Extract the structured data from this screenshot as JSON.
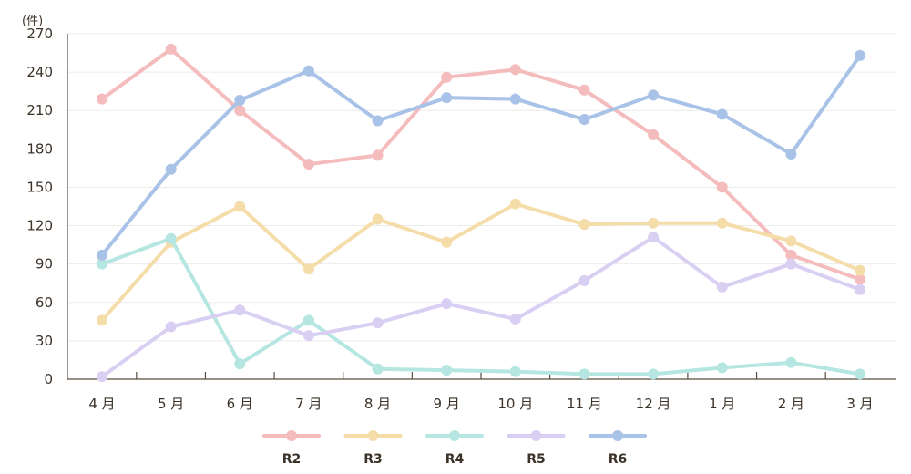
{
  "chart_data": {
    "type": "line",
    "unit": "(件)",
    "categories": [
      "4 月",
      "5 月",
      "6 月",
      "7 月",
      "8 月",
      "9 月",
      "10 月",
      "11 月",
      "12 月",
      "1 月",
      "2 月",
      "3 月"
    ],
    "ylim": [
      0,
      270
    ],
    "yticks": [
      0,
      30,
      60,
      90,
      120,
      150,
      180,
      210,
      240,
      270
    ],
    "grid": true,
    "legend_position": "bottom",
    "series": [
      {
        "name": "R2",
        "color": "#f4bcbc",
        "values": [
          219,
          258,
          210,
          168,
          175,
          236,
          242,
          226,
          191,
          150,
          97,
          78
        ]
      },
      {
        "name": "R3",
        "color": "#f5ddaa",
        "values": [
          46,
          107,
          135,
          86,
          125,
          107,
          137,
          121,
          122,
          122,
          108,
          85
        ]
      },
      {
        "name": "R4",
        "color": "#b5e6e1",
        "values": [
          90,
          110,
          12,
          46,
          8,
          7,
          6,
          4,
          4,
          9,
          13,
          4
        ]
      },
      {
        "name": "R5",
        "color": "#d8cff3",
        "values": [
          2,
          41,
          54,
          34,
          44,
          59,
          47,
          77,
          111,
          72,
          90,
          70
        ]
      },
      {
        "name": "R6",
        "color": "#a9c2e7",
        "values": [
          97,
          164,
          218,
          241,
          202,
          220,
          219,
          203,
          222,
          207,
          176,
          253
        ]
      }
    ]
  }
}
